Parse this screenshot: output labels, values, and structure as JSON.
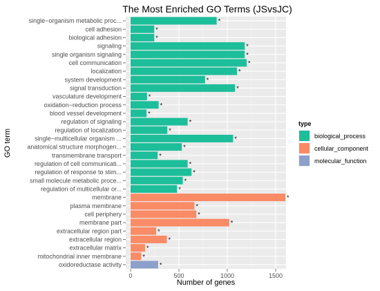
{
  "chart_data": {
    "type": "bar",
    "orientation": "horizontal",
    "title": "The Most Enriched GO Terms (JSvsJC)",
    "xlabel": "Number of genes",
    "ylabel": "GO term",
    "xlim": [
      0,
      1700
    ],
    "xticks": [
      "0",
      "500",
      "1000",
      "1500"
    ],
    "xtick_values": [
      0,
      500,
      1000,
      1500
    ],
    "grid": true,
    "legend_position": "right",
    "legend_title": "type",
    "legend": [
      {
        "name": "biological_process",
        "color": "#1dbe9a"
      },
      {
        "name": "cellular_component",
        "color": "#f98b66"
      },
      {
        "name": "molecular_function",
        "color": "#8da0cb"
      }
    ],
    "categories": [
      {
        "label": "single−organism metabolic proc...",
        "value": 890,
        "type": "biological_process",
        "star": "*"
      },
      {
        "label": "cell adhesion",
        "value": 245,
        "type": "biological_process",
        "star": "*"
      },
      {
        "label": "biological adhesion",
        "value": 245,
        "type": "biological_process",
        "star": "*"
      },
      {
        "label": "signaling",
        "value": 1180,
        "type": "biological_process",
        "star": "*"
      },
      {
        "label": "single organism signaling",
        "value": 1180,
        "type": "biological_process",
        "star": "*"
      },
      {
        "label": "cell communication",
        "value": 1200,
        "type": "biological_process",
        "star": "*"
      },
      {
        "label": "localization",
        "value": 1100,
        "type": "biological_process",
        "star": "*"
      },
      {
        "label": "system development",
        "value": 770,
        "type": "biological_process",
        "star": "*"
      },
      {
        "label": "signal transduction",
        "value": 1080,
        "type": "biological_process",
        "star": "*"
      },
      {
        "label": "vasculature development",
        "value": 170,
        "type": "biological_process",
        "star": "*"
      },
      {
        "label": "oxidation−reduction process",
        "value": 290,
        "type": "biological_process",
        "star": "*"
      },
      {
        "label": "blood vessel development",
        "value": 165,
        "type": "biological_process",
        "star": "*"
      },
      {
        "label": "regulation of signaling",
        "value": 590,
        "type": "biological_process",
        "star": "*"
      },
      {
        "label": "regulation of localization",
        "value": 380,
        "type": "biological_process",
        "star": "*"
      },
      {
        "label": "single−multicellular organism ...",
        "value": 1060,
        "type": "biological_process",
        "star": "*"
      },
      {
        "label": "anatomical structure morphogen...",
        "value": 530,
        "type": "biological_process",
        "star": "*"
      },
      {
        "label": "transmembrane transport",
        "value": 280,
        "type": "biological_process",
        "star": "*"
      },
      {
        "label": "regulation of cell communicati...",
        "value": 590,
        "type": "biological_process",
        "star": "*"
      },
      {
        "label": "regulation of response to stim...",
        "value": 630,
        "type": "biological_process",
        "star": "*"
      },
      {
        "label": "small molecule metabolic proce...",
        "value": 540,
        "type": "biological_process",
        "star": "*"
      },
      {
        "label": "regulation of multicellular or...",
        "value": 480,
        "type": "biological_process",
        "star": "*"
      },
      {
        "label": "membrane",
        "value": 1600,
        "type": "cellular_component",
        "star": "*"
      },
      {
        "label": "plasma membrane",
        "value": 660,
        "type": "cellular_component",
        "star": "*"
      },
      {
        "label": "cell periphery",
        "value": 680,
        "type": "cellular_component",
        "star": "*"
      },
      {
        "label": "membrane part",
        "value": 1020,
        "type": "cellular_component",
        "star": "*"
      },
      {
        "label": "extracellular region part",
        "value": 265,
        "type": "cellular_component",
        "star": "*"
      },
      {
        "label": "extracellular region",
        "value": 375,
        "type": "cellular_component",
        "star": "*"
      },
      {
        "label": "extracellular matrix",
        "value": 150,
        "type": "cellular_component",
        "star": "*"
      },
      {
        "label": "mitochondrial inner membrane",
        "value": 110,
        "type": "cellular_component",
        "star": "*"
      },
      {
        "label": "oxidoreductase activity",
        "value": 285,
        "type": "molecular_function",
        "star": "*"
      }
    ]
  }
}
